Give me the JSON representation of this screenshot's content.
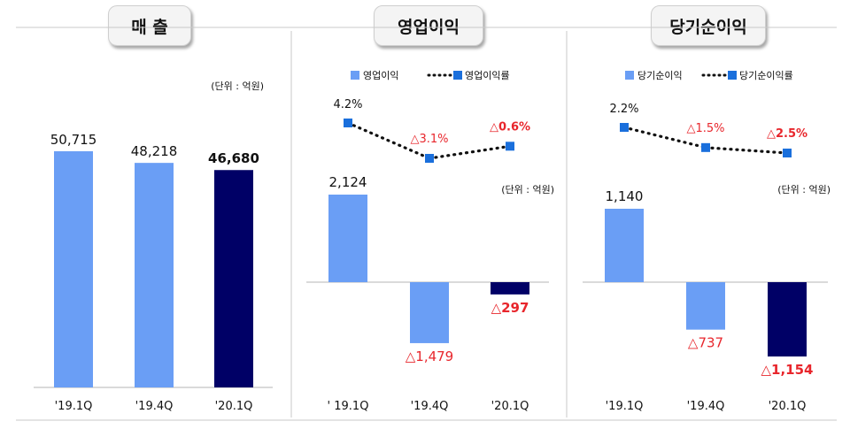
{
  "chart_data": [
    {
      "type": "bar",
      "title": "매 출",
      "unit_label": "(단위 : 억원)",
      "categories": [
        "'19.1Q",
        "'19.4Q",
        "'20.1Q"
      ],
      "values": [
        50715,
        48218,
        46680
      ],
      "value_labels": [
        "50,715",
        "48,218",
        "46,680"
      ],
      "colors": [
        "#6a9ef5",
        "#6a9ef5",
        "#000066"
      ]
    },
    {
      "type": "bar",
      "title": "영업이익",
      "unit_label": "(단위 : 억원)",
      "categories": [
        "' 19.1Q",
        "'19.4Q",
        "'20.1Q"
      ],
      "series": [
        {
          "name": "영업이익",
          "type": "bar",
          "values": [
            2124,
            -1479,
            -297
          ],
          "labels": [
            "2,124",
            "△1,479",
            "△297"
          ]
        },
        {
          "name": "영업이익률",
          "type": "line",
          "values": [
            4.2,
            -3.1,
            -0.6
          ],
          "labels": [
            "4.2%",
            "△3.1%",
            "△0.6%"
          ]
        }
      ],
      "colors": [
        "#6a9ef5",
        "#6a9ef5",
        "#000066"
      ],
      "line_color": "#1a6fdc",
      "negative_label_color": "#e8262c"
    },
    {
      "type": "bar",
      "title": "당기순이익",
      "unit_label": "(단위 : 억원)",
      "categories": [
        "'19.1Q",
        "'19.4Q",
        "'20.1Q"
      ],
      "series": [
        {
          "name": "당기순이익",
          "type": "bar",
          "values": [
            1140,
            -737,
            -1154
          ],
          "labels": [
            "1,140",
            "△737",
            "△1,154"
          ]
        },
        {
          "name": "당기순이익률",
          "type": "line",
          "values": [
            2.2,
            -1.5,
            -2.5
          ],
          "labels": [
            "2.2%",
            "△1.5%",
            "△2.5%"
          ]
        }
      ],
      "colors": [
        "#6a9ef5",
        "#6a9ef5",
        "#000066"
      ],
      "line_color": "#1a6fdc",
      "negative_label_color": "#e8262c"
    }
  ]
}
